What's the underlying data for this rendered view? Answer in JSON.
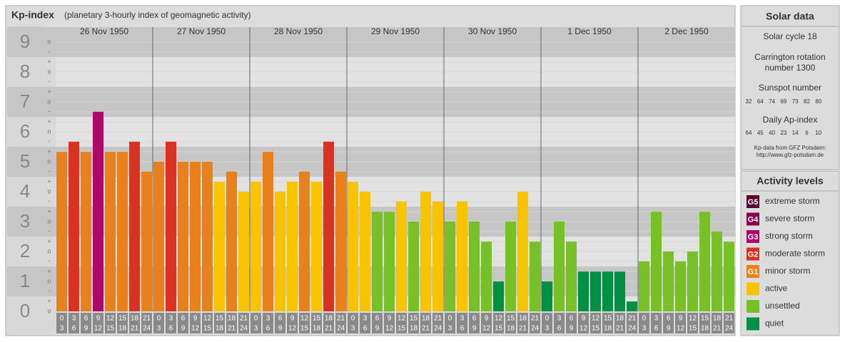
{
  "chart_data": {
    "type": "bar",
    "title": "Kp-index",
    "subtitle": "(planetary 3-hourly index of geomagnetic activity)",
    "days": [
      "26 Nov 1950",
      "27 Nov 1950",
      "28 Nov 1950",
      "29 Nov 1950",
      "30 Nov 1950",
      "1 Dec 1950",
      "2 Dec 1950"
    ],
    "hour_starts": [
      0,
      3,
      6,
      9,
      12,
      15,
      18,
      21
    ],
    "hour_ends": [
      3,
      6,
      9,
      12,
      15,
      18,
      21,
      24
    ],
    "values": [
      5.33,
      5.67,
      5.33,
      6.67,
      5.33,
      5.33,
      5.67,
      4.67,
      5,
      5.67,
      5,
      5,
      5,
      4.33,
      4.67,
      4,
      4.33,
      5.33,
      4,
      4.33,
      4.67,
      4.33,
      5.67,
      4.67,
      4.33,
      4,
      3.33,
      3.33,
      3.67,
      3,
      4,
      3.67,
      3,
      3.67,
      3,
      2.33,
      1,
      3,
      4,
      2.33,
      1,
      3,
      2.33,
      1.33,
      1.33,
      1.33,
      1.33,
      0.33,
      1.67,
      3.33,
      2,
      1.67,
      2,
      3.33,
      2.67,
      2.33
    ],
    "ylim": [
      0,
      9.5
    ],
    "yticks": [
      0,
      1,
      2,
      3,
      4,
      5,
      6,
      7,
      8,
      9
    ],
    "minor_yticks": [
      {
        "value": 0,
        "label": "o"
      },
      {
        "value": 0.33,
        "label": "+"
      },
      {
        "value": 0.67,
        "label": "-"
      },
      {
        "value": 1,
        "label": "o"
      },
      {
        "value": 1.33,
        "label": "+"
      },
      {
        "value": 1.67,
        "label": "-"
      },
      {
        "value": 2,
        "label": "o"
      },
      {
        "value": 2.33,
        "label": "+"
      },
      {
        "value": 2.67,
        "label": "-"
      },
      {
        "value": 3,
        "label": "o"
      },
      {
        "value": 3.33,
        "label": "+"
      },
      {
        "value": 3.67,
        "label": "-"
      },
      {
        "value": 4,
        "label": "o"
      },
      {
        "value": 4.33,
        "label": "+"
      },
      {
        "value": 4.67,
        "label": "-"
      },
      {
        "value": 5,
        "label": "o"
      },
      {
        "value": 5.33,
        "label": "+"
      },
      {
        "value": 5.67,
        "label": "-"
      },
      {
        "value": 6,
        "label": "o"
      },
      {
        "value": 6.33,
        "label": "+"
      },
      {
        "value": 6.67,
        "label": "-"
      },
      {
        "value": 7,
        "label": "o"
      },
      {
        "value": 7.33,
        "label": "+"
      },
      {
        "value": 7.67,
        "label": "-"
      },
      {
        "value": 8,
        "label": "o"
      },
      {
        "value": 8.33,
        "label": "+"
      },
      {
        "value": 8.67,
        "label": "-"
      },
      {
        "value": 9,
        "label": "o"
      }
    ],
    "legend_title": "Activity levels",
    "levels": [
      {
        "badge": "G5",
        "name": "extreme storm",
        "color": "#5a0030",
        "min": 8.67
      },
      {
        "badge": "G4",
        "name": "severe storm",
        "color": "#880050",
        "min": 7.67
      },
      {
        "badge": "G3",
        "name": "strong storm",
        "color": "#ac0868",
        "min": 6.67
      },
      {
        "badge": "G2",
        "name": "moderate storm",
        "color": "#d83222",
        "min": 5.67
      },
      {
        "badge": "G1",
        "name": "minor storm",
        "color": "#e8801c",
        "min": 4.67
      },
      {
        "name": "active",
        "color": "#f8c400",
        "min": 3.67
      },
      {
        "name": "unsettled",
        "color": "#78c028",
        "min": 1.67
      },
      {
        "name": "quiet",
        "color": "#009044",
        "min": 0
      }
    ]
  },
  "solar_data": {
    "title": "Solar data",
    "cycle": "Solar cycle 18",
    "carrington": [
      "Carrington rotation",
      "number 1300"
    ],
    "sunspot_label": "Sunspot number",
    "sunspot_numbers": [
      32,
      64,
      74,
      69,
      73,
      82,
      80
    ],
    "ap_label": "Daily Ap-index",
    "ap_values": [
      64,
      45,
      40,
      23,
      14,
      6,
      10
    ],
    "source": [
      "Kp-data from GFZ Potsdam:",
      "http://www.gfz-potsdam.de"
    ]
  }
}
